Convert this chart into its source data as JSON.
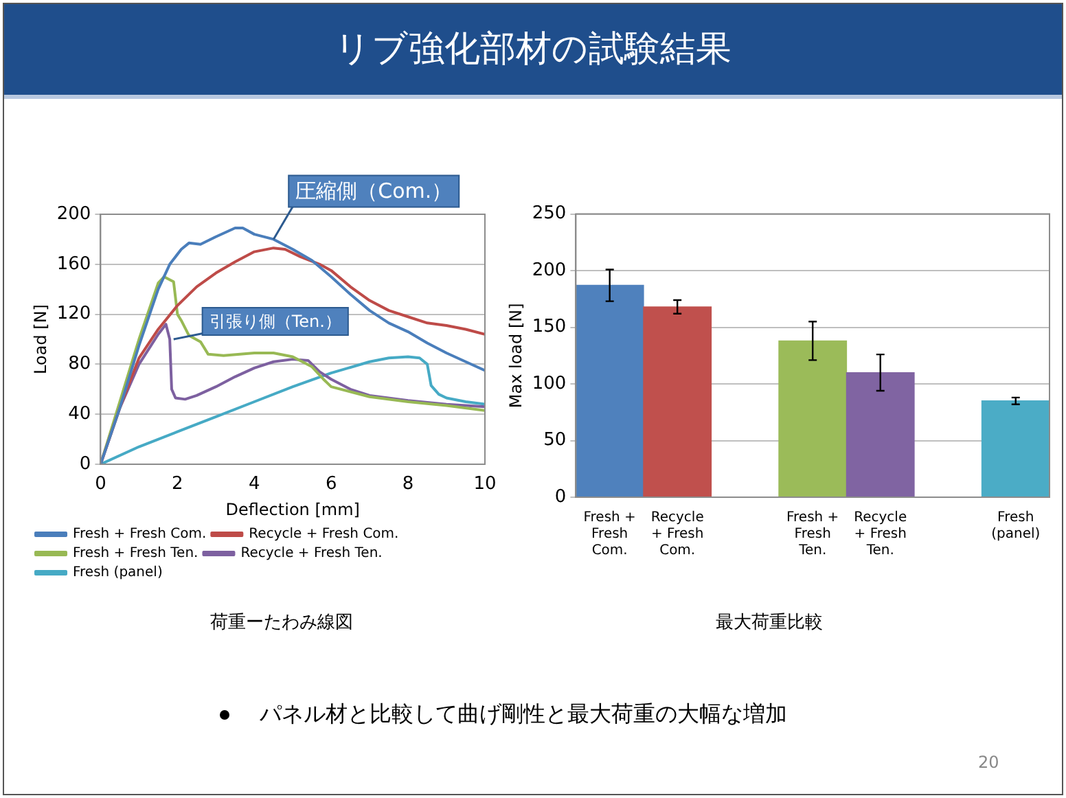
{
  "chart_data": [
    {
      "type": "line",
      "title": "リブ強化部材の試験結果",
      "xlabel": "Deflection [mm]",
      "ylabel": "Load [N]",
      "xlim": [
        0,
        10
      ],
      "xticks": [
        0,
        2,
        4,
        6,
        8,
        10
      ],
      "ylim": [
        0,
        200
      ],
      "yticks": [
        0,
        40,
        80,
        120,
        160,
        200
      ],
      "grid": "y",
      "legend": "bottom",
      "marker": "none",
      "series": [
        {
          "name": "Fresh + Fresh Com.",
          "color": "#4a7ebb",
          "x": [
            0,
            0.5,
            1,
            1.5,
            1.8,
            2.1,
            2.3,
            2.6,
            3,
            3.5,
            3.7,
            4,
            4.5,
            5,
            5.5,
            6,
            6.5,
            7,
            7.5,
            8,
            8.5,
            9,
            9.5,
            10
          ],
          "values": [
            0,
            45,
            95,
            140,
            160,
            172,
            177,
            176,
            182,
            189,
            189,
            184,
            180,
            172,
            163,
            150,
            136,
            123,
            113,
            106,
            97,
            89,
            82,
            75
          ]
        },
        {
          "name": "Recycle + Fresh Com.",
          "color": "#be4b48",
          "x": [
            0,
            0.5,
            1,
            1.5,
            2,
            2.5,
            3,
            3.5,
            4,
            4.5,
            4.8,
            5.2,
            5.7,
            6,
            6.5,
            7,
            7.5,
            8,
            8.5,
            9,
            9.5,
            10
          ],
          "values": [
            0,
            45,
            85,
            108,
            127,
            142,
            153,
            162,
            170,
            173,
            172,
            166,
            160,
            155,
            142,
            131,
            123,
            118,
            113,
            111,
            108,
            104
          ]
        },
        {
          "name": "Fresh + Fresh Ten.",
          "color": "#98b954",
          "x": [
            0,
            0.5,
            1,
            1.5,
            1.65,
            1.9,
            2,
            2.1,
            2.3,
            2.6,
            2.8,
            3.2,
            4,
            4.5,
            5,
            5.5,
            5.8,
            6,
            7,
            8,
            9,
            10
          ],
          "values": [
            0,
            50,
            100,
            145,
            150,
            146,
            120,
            115,
            103,
            98,
            88,
            87,
            89,
            89,
            86,
            78,
            68,
            62,
            54,
            50,
            47,
            43
          ]
        },
        {
          "name": "Recycle + Fresh Ten.",
          "color": "#7d60a0",
          "x": [
            0,
            0.5,
            1,
            1.5,
            1.7,
            1.8,
            1.85,
            1.95,
            2.2,
            2.5,
            3,
            3.5,
            4,
            4.5,
            5,
            5.4,
            5.7,
            6,
            6.5,
            7,
            8,
            9,
            10
          ],
          "values": [
            0,
            45,
            80,
            104,
            112,
            100,
            60,
            53,
            52,
            55,
            62,
            70,
            77,
            82,
            84,
            83,
            74,
            68,
            60,
            55,
            51,
            48,
            46
          ]
        },
        {
          "name": "Fresh (panel)",
          "color": "#46aac5",
          "x": [
            0,
            1,
            2,
            3,
            4,
            5,
            6,
            7,
            7.5,
            8,
            8.3,
            8.5,
            8.6,
            8.8,
            9,
            9.5,
            10
          ],
          "values": [
            0,
            14,
            26,
            38,
            50,
            62,
            73,
            82,
            85,
            86,
            85,
            80,
            63,
            56,
            53,
            50,
            48
          ]
        }
      ],
      "annotations": [
        {
          "text": "圧縮側（Com.）",
          "x": 4.5,
          "y": 180
        },
        {
          "text": "引張り側（Ten.）",
          "x": 1.9,
          "y": 100
        },
        "荷重ーたわみ線図"
      ]
    },
    {
      "type": "bar",
      "ylabel": "Max load [N]",
      "categories": [
        "Fresh + Fresh Com.",
        "Recycle + Fresh Com.",
        null,
        "Fresh + Fresh Ten.",
        "Recycle + Fresh Ten.",
        null,
        "Fresh (panel)"
      ],
      "values": [
        187,
        168,
        null,
        138,
        110,
        null,
        85
      ],
      "errors": [
        14,
        6,
        null,
        17,
        16,
        null,
        3
      ],
      "colors": [
        "#4f81bd",
        "#c0504d",
        "#ffffff",
        "#9bbb59",
        "#8064a2",
        "#ffffff",
        "#4bacc6"
      ],
      "ylim": [
        0,
        250
      ],
      "yticks": [
        0,
        50,
        100,
        150,
        200,
        250
      ],
      "grid": "y",
      "annotations": [
        "最大荷重比較"
      ]
    },
    {
      "type": "other",
      "annotations": [
        "パネル材と比較して曲げ剛性と最大荷重の大幅な増加",
        "20"
      ]
    }
  ]
}
